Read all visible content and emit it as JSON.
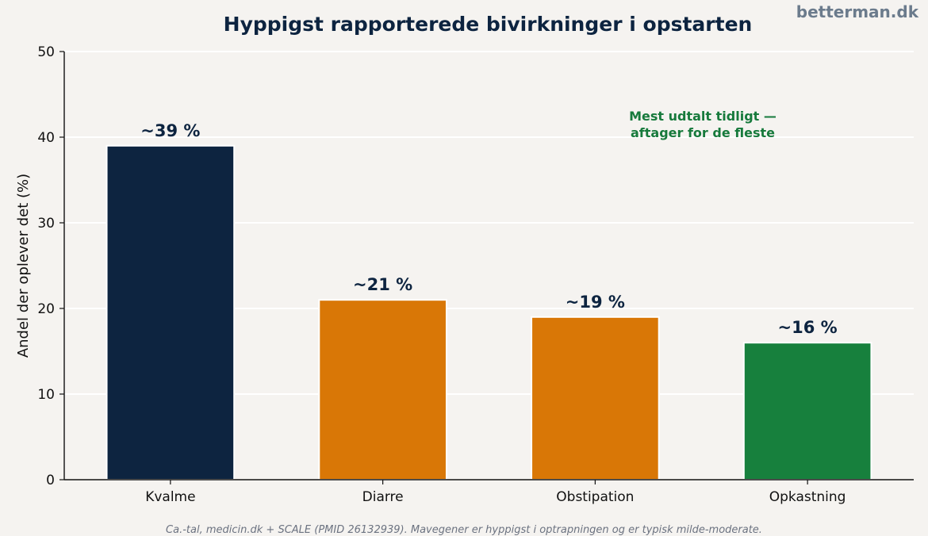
{
  "brand": "betterman.dk",
  "source": "Ca.-tal, medicin.dk + SCALE (PMID 26132939). Mavegener er hyppigst i optrapningen og er typisk milde-moderate.",
  "chart_data": {
    "type": "bar",
    "title": "Hyppigst rapporterede bivirkninger i opstarten",
    "xlabel": "",
    "ylabel": "Andel der oplever det (%)",
    "ylim": [
      0,
      50
    ],
    "yticks": [
      0,
      10,
      20,
      30,
      40,
      50
    ],
    "grid": true,
    "categories": [
      "Kvalme",
      "Diarre",
      "Obstipation",
      "Opkastning"
    ],
    "values": [
      39,
      21,
      19,
      16
    ],
    "data_labels": [
      "~39 %",
      "~21 %",
      "~19 %",
      "~16 %"
    ],
    "colors": [
      "#0d2440",
      "#d97706",
      "#d97706",
      "#17803d"
    ],
    "annotation": [
      "Mest udtalt tidligt —",
      "aftager for de fleste"
    ]
  }
}
